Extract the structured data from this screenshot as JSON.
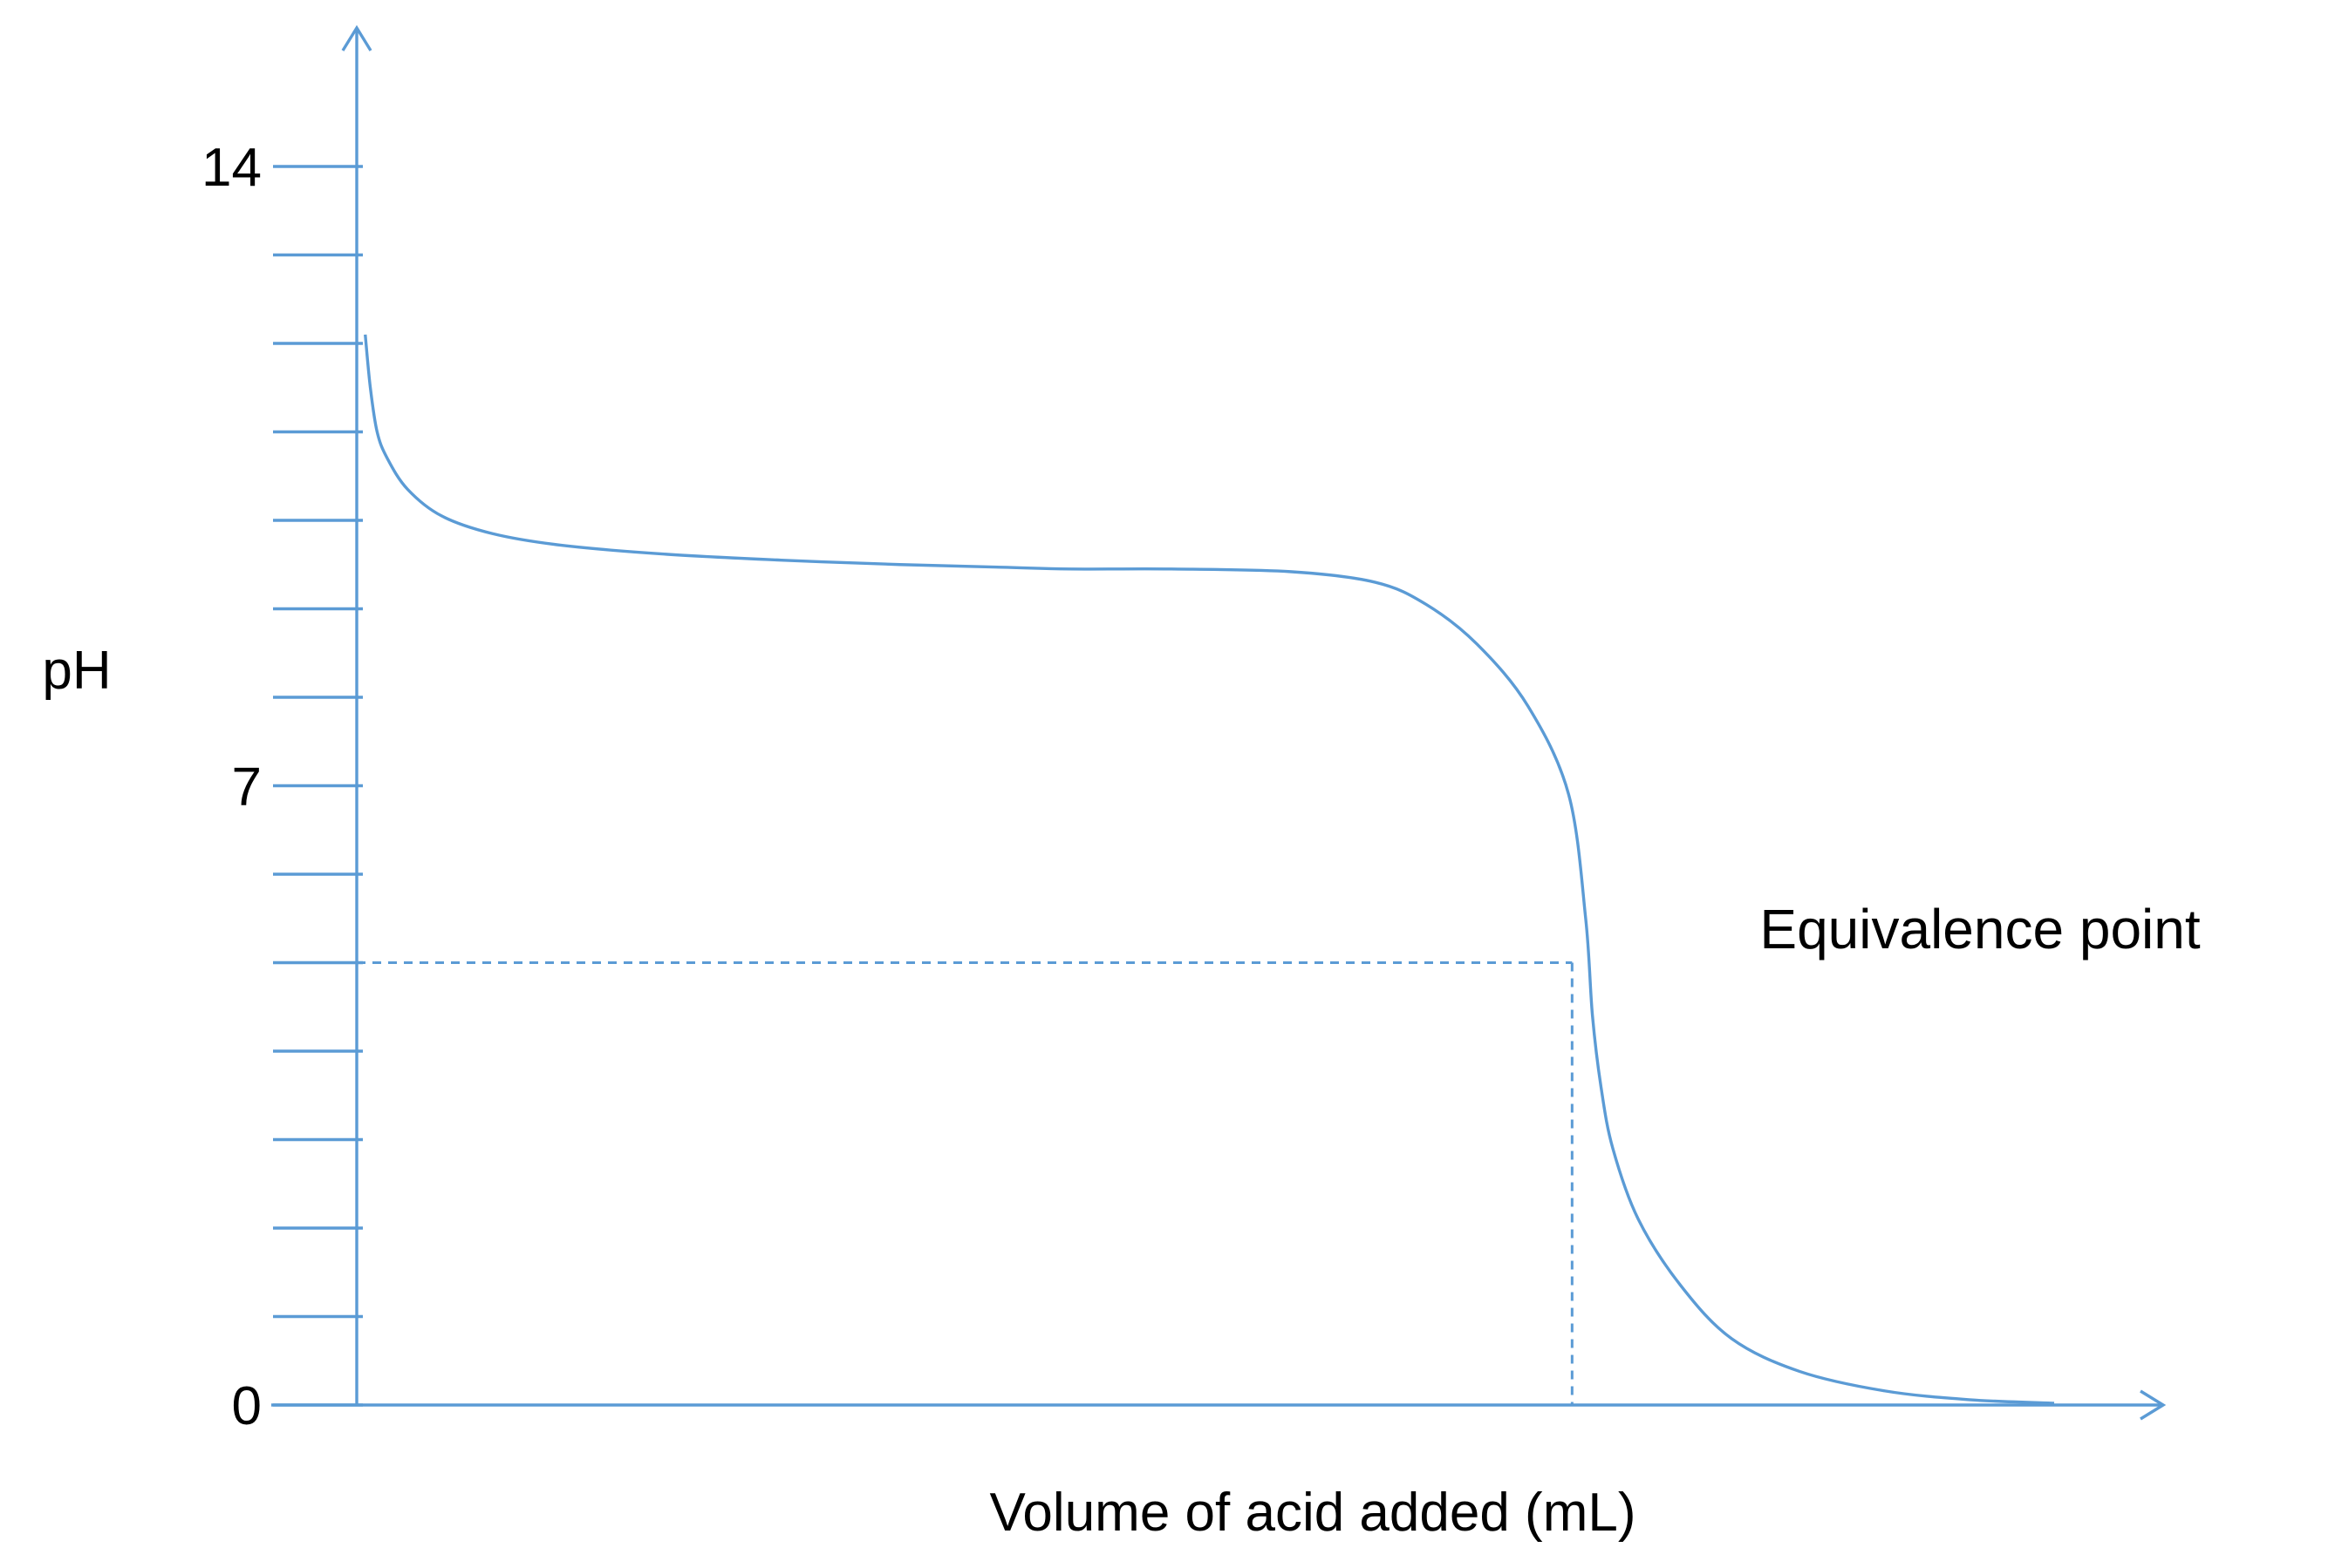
{
  "chart_data": {
    "type": "line",
    "title": "",
    "xlabel": "Volume of acid added (mL)",
    "ylabel": "pH",
    "xlim": [
      0,
      100
    ],
    "ylim": [
      0,
      14
    ],
    "y_ticks": [
      0,
      1,
      2,
      3,
      4,
      5,
      6,
      7,
      8,
      9,
      10,
      11,
      12,
      13,
      14
    ],
    "y_tick_labels": [
      {
        "value": 14,
        "label": "14"
      },
      {
        "value": 7,
        "label": "7"
      },
      {
        "value": 0,
        "label": "0"
      }
    ],
    "x_tick_labels": [],
    "grid": false,
    "legend": "none",
    "series": [
      {
        "x": [
          0.5,
          0.8,
          1.2,
          1.8,
          3,
          5,
          8,
          12,
          18,
          25,
          32,
          38,
          42,
          48,
          55,
          60,
          63,
          66,
          69,
          71.4,
          72.4,
          72.8,
          73.3,
          74,
          75.5,
          78,
          81,
          85,
          90,
          95,
          100
        ],
        "y": [
          12.1,
          11.5,
          11.0,
          10.7,
          10.35,
          10.05,
          9.85,
          9.72,
          9.62,
          9.55,
          9.5,
          9.47,
          9.45,
          9.45,
          9.42,
          9.3,
          9.05,
          8.6,
          7.9,
          6.9,
          5.5,
          4.4,
          3.6,
          2.9,
          2.1,
          1.35,
          0.75,
          0.38,
          0.16,
          0.06,
          0.02
        ]
      }
    ],
    "annotations": [
      {
        "text": "Equivalence point",
        "x": 71.6,
        "y": 5
      }
    ],
    "colors": {
      "line": "#5b9bd5",
      "text": "#000000"
    }
  }
}
